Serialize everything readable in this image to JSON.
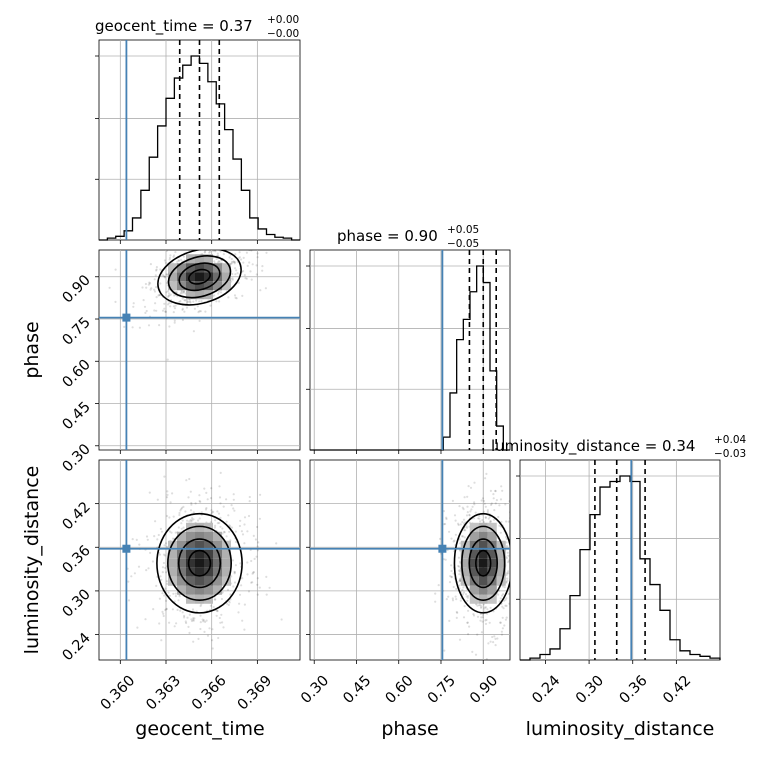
{
  "chart_data": {
    "type": "corner",
    "parameters": [
      "geocent_time",
      "phase",
      "luminosity_distance"
    ],
    "axis_labels": {
      "geocent_time": "geocent_time",
      "phase": "phase",
      "luminosity_distance": "luminosity_distance"
    },
    "titles": {
      "geocent_time": {
        "main": "geocent_time = 0.37",
        "sup": "+0.00",
        "sub": "−0.00"
      },
      "phase": {
        "main": "phase = 0.90",
        "sup": "+0.05",
        "sub": "−0.05"
      },
      "luminosity_distance": {
        "main": "luminosity_distance = 0.34",
        "sup": "+0.04",
        "sub": "−0.03"
      }
    },
    "ranges": {
      "geocent_time": [
        0.3586,
        0.3718
      ],
      "phase": [
        0.285,
        0.995
      ],
      "luminosity_distance": [
        0.205,
        0.48
      ]
    },
    "ticks": {
      "geocent_time": {
        "values": [
          0.36,
          0.363,
          0.366,
          0.369
        ],
        "labels": [
          "0.360",
          "0.363",
          "0.366",
          "0.369"
        ]
      },
      "phase": {
        "values": [
          0.3,
          0.45,
          0.6,
          0.75,
          0.9
        ],
        "labels": [
          "0.30",
          "0.45",
          "0.60",
          "0.75",
          "0.90"
        ]
      },
      "luminosity_distance": {
        "values": [
          0.24,
          0.3,
          0.36,
          0.42
        ],
        "labels": [
          "0.24",
          "0.30",
          "0.36",
          "0.42"
        ]
      }
    },
    "truths": {
      "geocent_time": 0.3604,
      "phase": 0.755,
      "luminosity_distance": 0.358
    },
    "quantiles": {
      "geocent_time": [
        0.3639,
        0.3652,
        0.3665
      ],
      "phase": [
        0.851,
        0.9,
        0.946
      ],
      "luminosity_distance": [
        0.308,
        0.338,
        0.377
      ]
    },
    "hist_1d": {
      "geocent_time": [
        0.0,
        0.01,
        0.02,
        0.05,
        0.12,
        0.27,
        0.45,
        0.62,
        0.77,
        0.88,
        0.95,
        1.0,
        0.96,
        0.86,
        0.74,
        0.6,
        0.44,
        0.27,
        0.12,
        0.06,
        0.03,
        0.015,
        0.01,
        0.0
      ],
      "phase": [
        0.0,
        0.0,
        0.0,
        0.0,
        0.0,
        0.0,
        0.0,
        0.0,
        0.0,
        0.0,
        0.0,
        0.0,
        0.0,
        0.0,
        0.0,
        0.0,
        0.0,
        0.0,
        0.0,
        0.0,
        0.07,
        0.31,
        0.6,
        0.71,
        0.86,
        1.0,
        0.91,
        0.43,
        0.13,
        0.0
      ],
      "luminosity_distance": [
        0.0,
        0.01,
        0.03,
        0.06,
        0.17,
        0.35,
        0.6,
        0.79,
        0.94,
        0.97,
        1.0,
        0.97,
        0.55,
        0.41,
        0.27,
        0.11,
        0.05,
        0.03,
        0.02,
        0.01
      ]
    },
    "grid": true
  }
}
